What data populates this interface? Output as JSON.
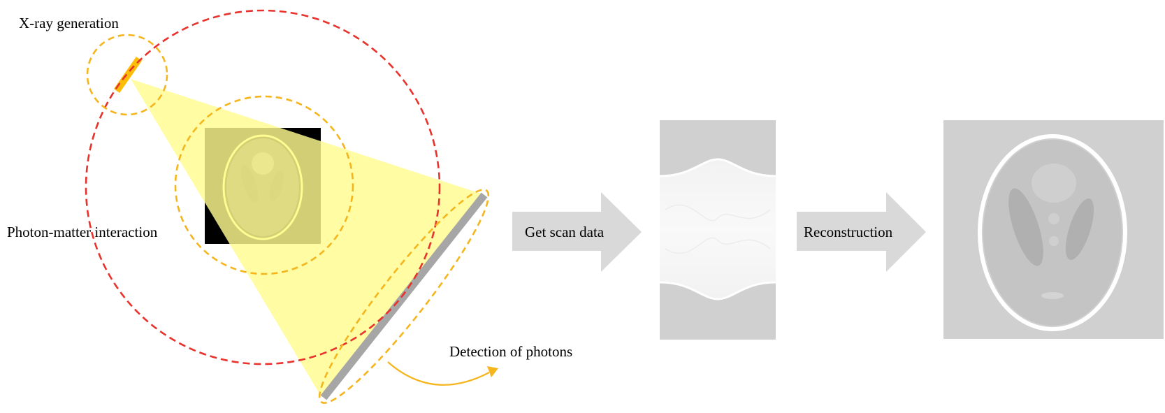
{
  "labels": {
    "xray_generation": "X-ray generation",
    "photon_matter": "Photon-matter interaction",
    "detection": "Detection of photons",
    "get_scan_data": "Get scan data",
    "reconstruction": "Reconstruction"
  },
  "colors": {
    "orbit": "#e8322c",
    "highlight": "#f4b51d",
    "xray_source": "#fbbd08",
    "beam": "#fffb8f",
    "detector": "#a6a6a6",
    "arrow": "#d9d9d9",
    "panel_background": "#d0d0d0",
    "phantom_background": "#000000",
    "phantom_ring": "#ffffa0"
  }
}
